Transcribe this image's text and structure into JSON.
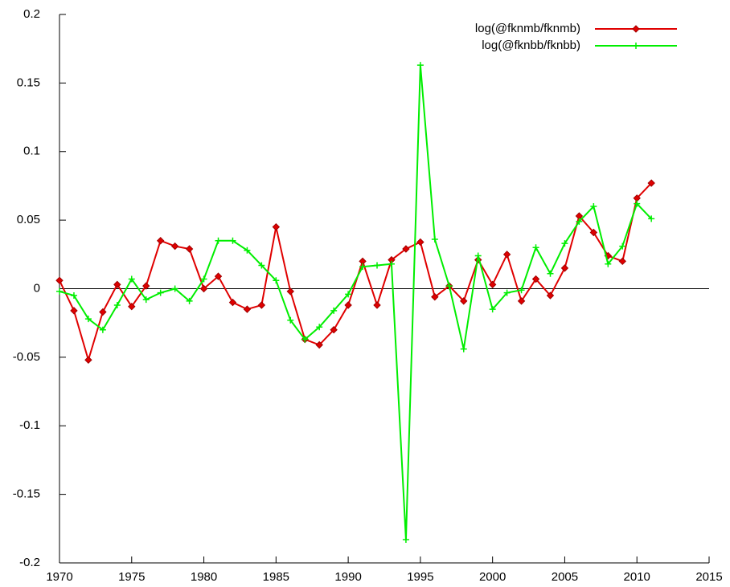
{
  "chart_data": {
    "type": "line",
    "x": [
      1970,
      1971,
      1972,
      1973,
      1974,
      1975,
      1976,
      1977,
      1978,
      1979,
      1980,
      1981,
      1982,
      1983,
      1984,
      1985,
      1986,
      1987,
      1988,
      1989,
      1990,
      1991,
      1992,
      1993,
      1994,
      1995,
      1996,
      1997,
      1998,
      1999,
      2000,
      2001,
      2002,
      2003,
      2004,
      2005,
      2006,
      2007,
      2008,
      2009,
      2010,
      2011
    ],
    "series": [
      {
        "name": "log(@fknmb/fknmb)",
        "color": "#e00000",
        "marker": "diamond",
        "values": [
          0.006,
          -0.016,
          -0.052,
          -0.017,
          0.003,
          -0.013,
          0.002,
          0.035,
          0.031,
          0.029,
          0.0,
          0.009,
          -0.01,
          -0.015,
          -0.012,
          0.045,
          -0.002,
          -0.037,
          -0.041,
          -0.03,
          -0.012,
          0.02,
          -0.012,
          0.021,
          0.029,
          0.034,
          -0.006,
          0.002,
          -0.009,
          0.021,
          0.003,
          0.025,
          -0.009,
          0.007,
          -0.005,
          0.015,
          0.053,
          0.041,
          0.024,
          0.02,
          0.066,
          0.077
        ]
      },
      {
        "name": "log(@fknbb/fknbb)",
        "color": "#00ee00",
        "marker": "plus",
        "values": [
          -0.002,
          -0.005,
          -0.022,
          -0.03,
          -0.012,
          0.007,
          -0.008,
          -0.003,
          0.0,
          -0.009,
          0.007,
          0.035,
          0.035,
          0.028,
          0.017,
          0.006,
          -0.023,
          -0.037,
          -0.028,
          -0.016,
          -0.004,
          0.016,
          0.017,
          0.018,
          -0.183,
          0.163,
          0.036,
          0.002,
          -0.044,
          0.024,
          -0.015,
          -0.003,
          -0.001,
          0.03,
          0.011,
          0.033,
          0.049,
          0.06,
          0.018,
          0.031,
          0.062,
          0.051
        ]
      }
    ],
    "xlim": [
      1970,
      2015
    ],
    "xticks": [
      1970,
      1975,
      1980,
      1985,
      1990,
      1995,
      2000,
      2005,
      2010,
      2015
    ],
    "ylim": [
      -0.2,
      0.2
    ],
    "yticks": [
      -0.2,
      -0.15,
      -0.1,
      -0.05,
      0,
      0.05,
      0.1,
      0.15,
      0.2
    ],
    "grid": false,
    "zeroaxis": true,
    "legend": "top-right"
  }
}
